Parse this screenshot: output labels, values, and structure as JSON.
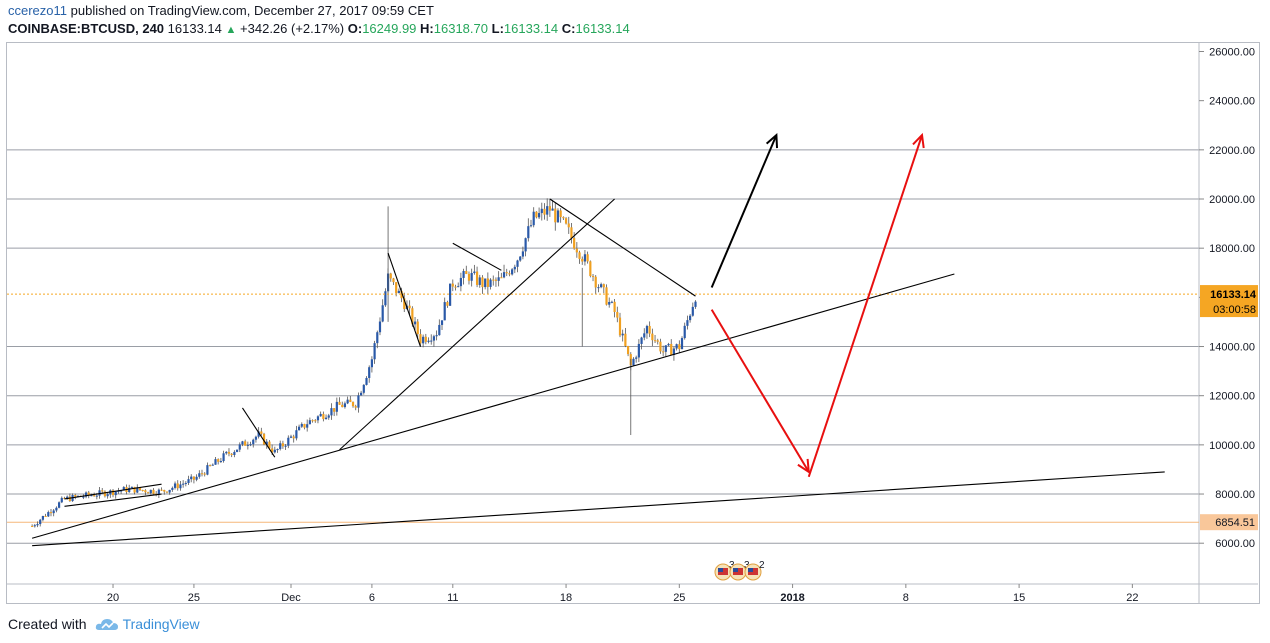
{
  "header": {
    "user": "ccerezo11",
    "published": " published on TradingView.com, December 27, 2017 09:59 CET",
    "symbol": "COINBASE:BTCUSD, 240",
    "last": "16133.14",
    "change_arrow": "▲",
    "change": "+342.26 (+2.17%)",
    "o_label": "O:",
    "o": "16249.99",
    "h_label": "H:",
    "h": "16318.70",
    "l_label": "L:",
    "l": "16133.14",
    "c_label": "C:",
    "c": "16133.14"
  },
  "footer": {
    "created_with": "Created with",
    "brand": "TradingView"
  },
  "colors": {
    "up": "#2a59a8",
    "down": "#f0a020",
    "grid": "#9a9ea6",
    "red": "#e81010",
    "price_tag": "#f5a623",
    "low_line": "#f5b77a"
  },
  "chart_data": {
    "type": "candlestick",
    "title": "COINBASE:BTCUSD, 240",
    "x_axis": {
      "start": "2017-11-15",
      "end": "2017-12-26",
      "tick_labels": [
        "20",
        "25",
        "Dec",
        "6",
        "11",
        "18",
        "25",
        "2018",
        "8",
        "15",
        "22"
      ],
      "tick_dates": [
        "2017-11-20",
        "2017-11-25",
        "2017-12-01",
        "2017-12-06",
        "2017-12-11",
        "2017-12-18",
        "2017-12-25",
        "2018-01-01",
        "2018-01-08",
        "2018-01-15",
        "2018-01-22"
      ]
    },
    "y_axis": {
      "ticks": [
        6000,
        8000,
        10000,
        12000,
        14000,
        16000,
        18000,
        20000,
        22000,
        24000,
        26000
      ],
      "tick_labels": [
        "6000.00",
        "8000.00",
        "10000.00",
        "12000.00",
        "14000.00",
        "16000.00",
        "18000.00",
        "20000.00",
        "22000.00",
        "24000.00",
        "26000.00"
      ],
      "range": [
        4600,
        26800
      ]
    },
    "horizontal_levels": [
      6000,
      8000,
      10000,
      12000,
      14000,
      18000,
      20000,
      22000
    ],
    "price_marker": {
      "value": 16133.14,
      "label": "16133.14",
      "countdown": "03:00:58"
    },
    "low_marker": {
      "value": 6854.51,
      "label": "6854.51"
    },
    "closes": [
      [
        "2017-11-15",
        6700
      ],
      [
        "2017-11-17",
        7800
      ],
      [
        "2017-11-19",
        8000
      ],
      [
        "2017-11-21",
        8200
      ],
      [
        "2017-11-23",
        8100
      ],
      [
        "2017-11-25",
        8600
      ],
      [
        "2017-11-27",
        9600
      ],
      [
        "2017-11-29",
        10400
      ],
      [
        "2017-11-30",
        9700
      ],
      [
        "2017-12-02",
        10900
      ],
      [
        "2017-12-04",
        11600
      ],
      [
        "2017-12-05",
        11700
      ],
      [
        "2017-12-06",
        13500
      ],
      [
        "2017-12-07",
        16800
      ],
      [
        "2017-12-08",
        15800
      ],
      [
        "2017-12-09",
        14300
      ],
      [
        "2017-12-10",
        14600
      ],
      [
        "2017-12-11",
        16600
      ],
      [
        "2017-12-12",
        16900
      ],
      [
        "2017-12-13",
        16500
      ],
      [
        "2017-12-14",
        16700
      ],
      [
        "2017-12-15",
        17600
      ],
      [
        "2017-12-16",
        19200
      ],
      [
        "2017-12-17",
        19600
      ],
      [
        "2017-12-18",
        18800
      ],
      [
        "2017-12-19",
        17700
      ],
      [
        "2017-12-20",
        16500
      ],
      [
        "2017-12-21",
        15400
      ],
      [
        "2017-12-22",
        13200
      ],
      [
        "2017-12-23",
        14800
      ],
      [
        "2017-12-24",
        13800
      ],
      [
        "2017-12-25",
        14000
      ],
      [
        "2017-12-26",
        16100
      ]
    ],
    "trendlines": [
      {
        "from": [
          "2017-11-15",
          5900
        ],
        "to": [
          "2018-01-24",
          8900
        ]
      },
      {
        "from": [
          "2017-11-15",
          6200
        ],
        "to": [
          "2018-01-11",
          16950
        ]
      },
      {
        "from": [
          "2017-12-04",
          9800
        ],
        "to": [
          "2017-12-21",
          20000
        ]
      },
      {
        "from": [
          "2017-12-17",
          20000
        ],
        "to": [
          "2017-12-26",
          16050
        ]
      },
      {
        "from": [
          "2017-12-07",
          17800
        ],
        "to": [
          "2017-12-09",
          14000
        ]
      },
      {
        "from": [
          "2017-12-11",
          18200
        ],
        "to": [
          "2017-12-14",
          17100
        ]
      },
      {
        "from": [
          "2017-11-28",
          11500
        ],
        "to": [
          "2017-11-30",
          9500
        ]
      },
      {
        "from": [
          "2017-11-17",
          7800
        ],
        "to": [
          "2017-11-23",
          8400
        ]
      },
      {
        "from": [
          "2017-11-17",
          7500
        ],
        "to": [
          "2017-11-23",
          8000
        ]
      }
    ],
    "projections": [
      {
        "color": "black",
        "from": [
          "2017-12-27",
          16400
        ],
        "to": [
          "2017-12-31",
          22600
        ]
      },
      {
        "color": "red",
        "from": [
          "2017-12-27",
          15500
        ],
        "to": [
          "2018-01-02",
          8900
        ]
      },
      {
        "color": "red",
        "from": [
          "2018-01-02",
          8700
        ],
        "to": [
          "2018-01-09",
          22600
        ]
      }
    ],
    "events": [
      "3",
      "3",
      "2"
    ]
  }
}
